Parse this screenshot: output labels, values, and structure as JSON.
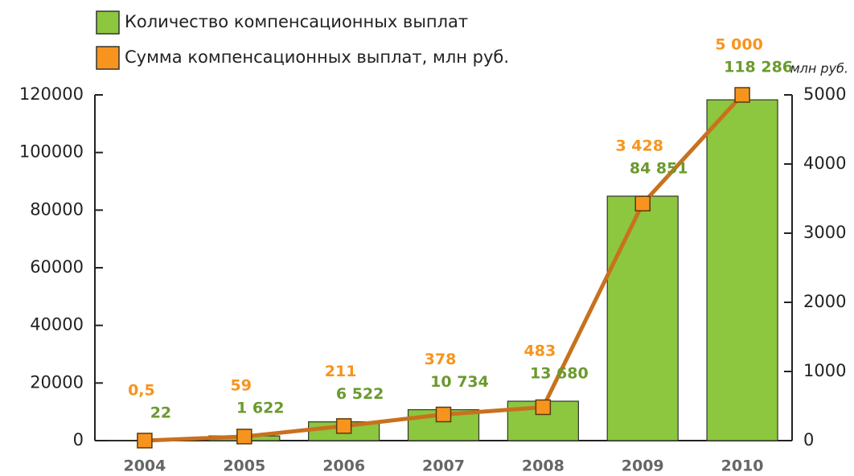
{
  "chart_data": {
    "type": "bar",
    "categories": [
      "2004",
      "2005",
      "2006",
      "2007",
      "2008",
      "2009",
      "2010"
    ],
    "series": [
      {
        "name": "Количество компенсационных выплат",
        "type": "bar",
        "color": "#8dc63f",
        "label_color": "#6a9a2e",
        "values": [
          22,
          1622,
          6522,
          10734,
          13680,
          84851,
          118286
        ],
        "value_labels": [
          "22",
          "1 622",
          "6 522",
          "10 734",
          "13 680",
          "84 851",
          "118 286"
        ]
      },
      {
        "name": "Сумма компенсационных выплат, млн руб.",
        "type": "line",
        "axis": "y2",
        "color": "#c8711e",
        "marker_color": "#f7941d",
        "label_color": "#f7941d",
        "values": [
          0.5,
          59,
          211,
          378,
          483,
          3428,
          5000
        ],
        "value_labels": [
          "0,5",
          "59",
          "211",
          "378",
          "483",
          "3 428",
          "5 000"
        ]
      }
    ],
    "ylim": [
      0,
      120000
    ],
    "yticks": [
      0,
      20000,
      40000,
      60000,
      80000,
      100000,
      120000
    ],
    "y2lim": [
      0,
      5000
    ],
    "y2ticks": [
      0,
      1000,
      2000,
      3000,
      4000,
      5000
    ],
    "y2label": "млн руб.",
    "grid": false
  }
}
